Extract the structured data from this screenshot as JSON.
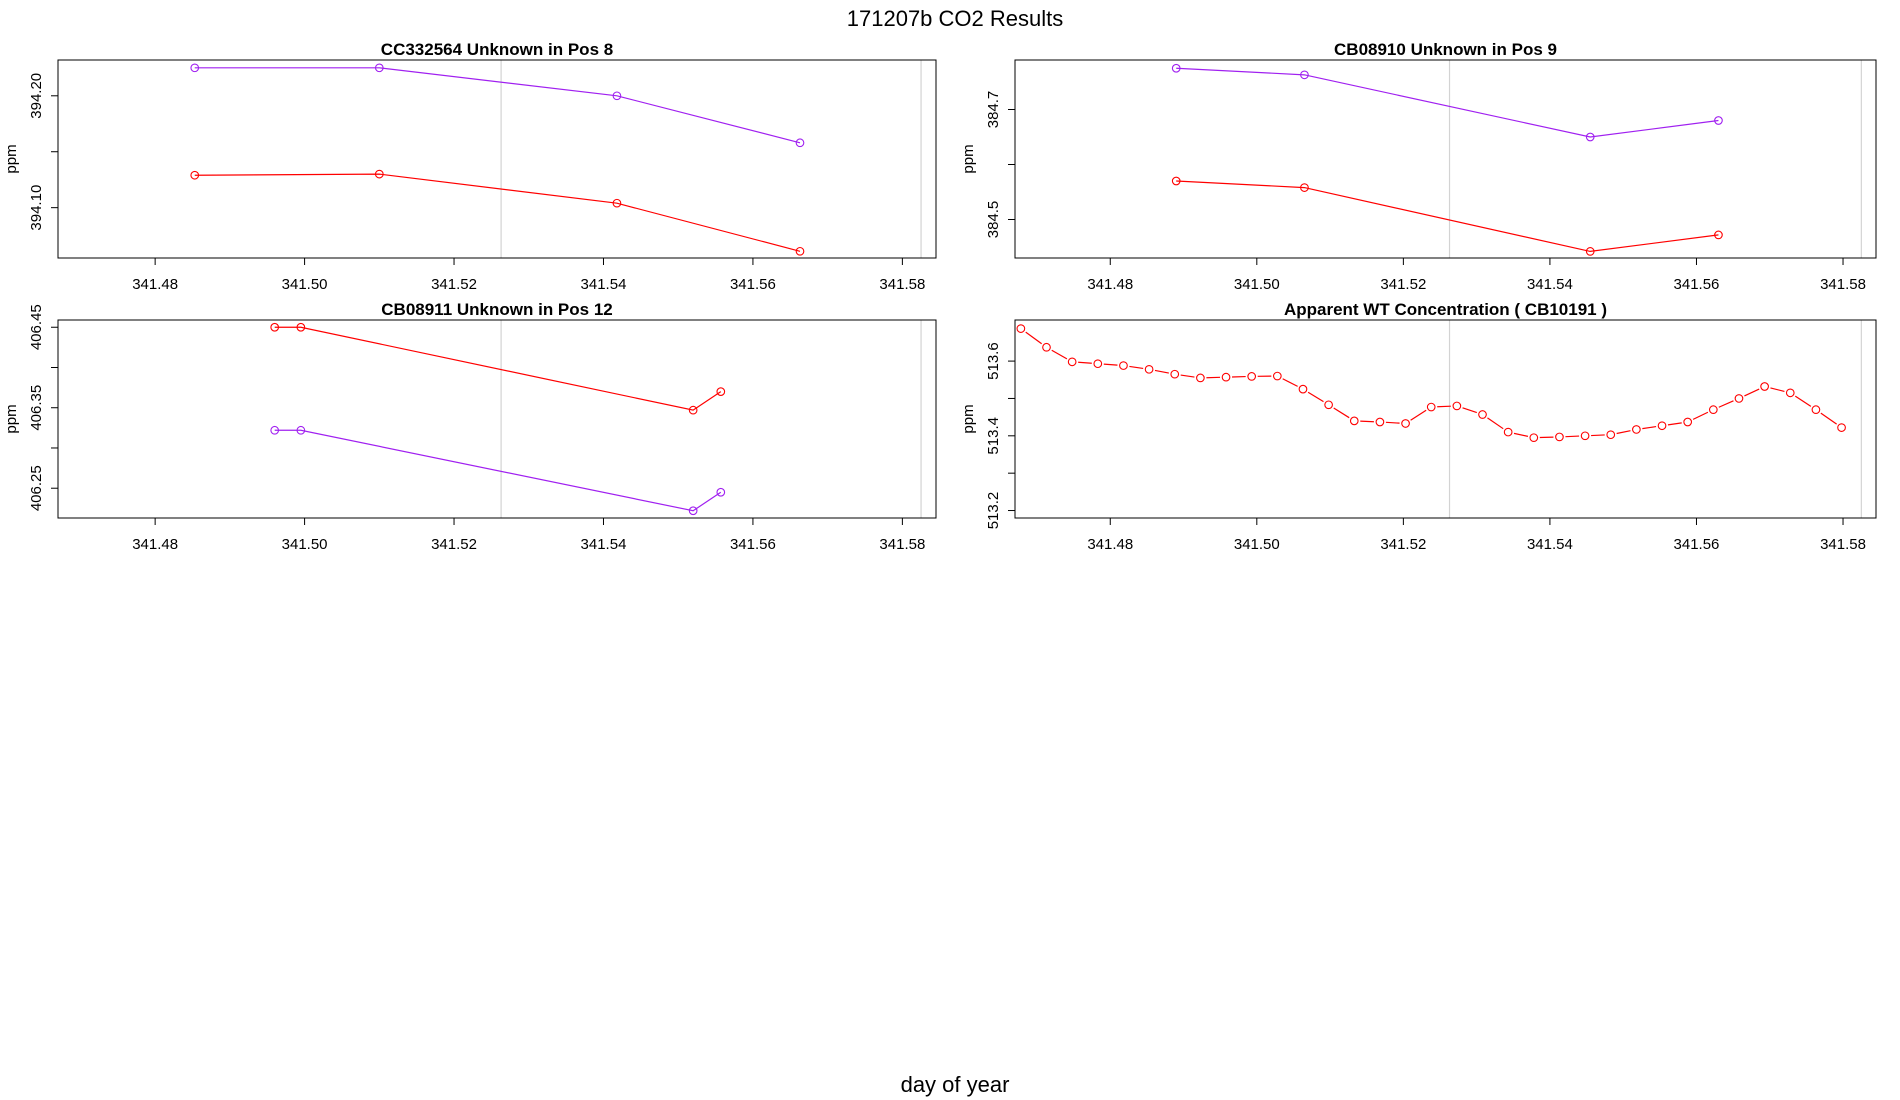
{
  "figure": {
    "title": "171207b  CO2 Results",
    "xlabel": "day of year"
  },
  "colors": {
    "red": "#ff0000",
    "purple": "#a020f0",
    "grid": "#d3d3d3",
    "axis": "#000000"
  },
  "chart_data": [
    {
      "type": "line",
      "title": "CC332564    Unknown in Pos 8",
      "ylabel": "ppm",
      "xlim": [
        341.467,
        341.5845
      ],
      "ylim": [
        394.055,
        394.232
      ],
      "xticks": [
        341.48,
        341.5,
        341.52,
        341.54,
        341.56,
        341.58
      ],
      "xtick_labels": [
        "341.48",
        "341.50",
        "341.52",
        "341.54",
        "341.56",
        "341.58"
      ],
      "yticks": [
        394.1,
        394.2
      ],
      "ytick_labels": [
        "394.10",
        "394.20"
      ],
      "yticks_minor": [
        394.15
      ],
      "vlines": [
        341.5263,
        341.5825
      ],
      "series": [
        {
          "name": "purple",
          "color": "purple",
          "dashed": false,
          "x": [
            341.4853,
            341.51,
            341.5418,
            341.5663
          ],
          "y": [
            394.225,
            394.225,
            394.2,
            394.158
          ]
        },
        {
          "name": "red",
          "color": "red",
          "dashed": false,
          "x": [
            341.4853,
            341.51,
            341.5418,
            341.5663
          ],
          "y": [
            394.129,
            394.13,
            394.104,
            394.061
          ]
        }
      ]
    },
    {
      "type": "line",
      "title": "CB08910    Unknown in Pos 9",
      "ylabel": "ppm",
      "xlim": [
        341.467,
        341.5845
      ],
      "ylim": [
        384.43,
        384.79
      ],
      "xticks": [
        341.48,
        341.5,
        341.52,
        341.54,
        341.56,
        341.58
      ],
      "xtick_labels": [
        "341.48",
        "341.50",
        "341.52",
        "341.54",
        "341.56",
        "341.58"
      ],
      "yticks": [
        384.5,
        384.7
      ],
      "ytick_labels": [
        "384.5",
        "384.7"
      ],
      "yticks_minor": [
        384.6
      ],
      "vlines": [
        341.5263,
        341.5825
      ],
      "series": [
        {
          "name": "purple",
          "color": "purple",
          "dashed": false,
          "x": [
            341.489,
            341.5065,
            341.5455,
            341.563
          ],
          "y": [
            384.775,
            384.763,
            384.65,
            384.68
          ]
        },
        {
          "name": "red",
          "color": "red",
          "dashed": false,
          "x": [
            341.489,
            341.5065,
            341.5455,
            341.563
          ],
          "y": [
            384.57,
            384.558,
            384.442,
            384.472
          ]
        }
      ]
    },
    {
      "type": "line",
      "title": "CB08911    Unknown in Pos 12",
      "ylabel": "ppm",
      "xlim": [
        341.467,
        341.5845
      ],
      "ylim": [
        406.213,
        406.459
      ],
      "xticks": [
        341.48,
        341.5,
        341.52,
        341.54,
        341.56,
        341.58
      ],
      "xtick_labels": [
        "341.48",
        "341.50",
        "341.52",
        "341.54",
        "341.56",
        "341.58"
      ],
      "yticks": [
        406.25,
        406.35,
        406.45
      ],
      "ytick_labels": [
        "406.25",
        "406.35",
        "406.45"
      ],
      "yticks_minor": [
        406.3,
        406.4
      ],
      "vlines": [
        341.5263,
        341.5825
      ],
      "series": [
        {
          "name": "red",
          "color": "red",
          "dashed": false,
          "x": [
            341.496,
            341.4995,
            341.552,
            341.5557
          ],
          "y": [
            406.45,
            406.45,
            406.347,
            406.37
          ]
        },
        {
          "name": "purple",
          "color": "purple",
          "dashed": false,
          "x": [
            341.496,
            341.4995,
            341.552,
            341.5557
          ],
          "y": [
            406.322,
            406.322,
            406.222,
            406.245
          ]
        }
      ]
    },
    {
      "type": "line",
      "title": "Apparent WT Concentration ( CB10191 )",
      "ylabel": "ppm",
      "xlim": [
        341.467,
        341.5845
      ],
      "ylim": [
        513.18,
        513.71
      ],
      "xticks": [
        341.48,
        341.5,
        341.52,
        341.54,
        341.56,
        341.58
      ],
      "xtick_labels": [
        "341.48",
        "341.50",
        "341.52",
        "341.54",
        "341.56",
        "341.58"
      ],
      "yticks": [
        513.2,
        513.4,
        513.6
      ],
      "ytick_labels": [
        "513.2",
        "513.4",
        "513.6"
      ],
      "yticks_minor": [
        513.3,
        513.5
      ],
      "vlines": [
        341.5263,
        341.5825
      ],
      "series": [
        {
          "name": "WT",
          "color": "red",
          "dashed": true,
          "x": [
            341.4678,
            341.4713,
            341.4748,
            341.4783,
            341.4818,
            341.4853,
            341.4888,
            341.4923,
            341.4958,
            341.4993,
            341.5028,
            341.5063,
            341.5098,
            341.5133,
            341.5168,
            341.5203,
            341.5238,
            341.5273,
            341.5308,
            341.5343,
            341.5378,
            341.5413,
            341.5448,
            341.5483,
            341.5518,
            341.5553,
            341.5588,
            341.5623,
            341.5658,
            341.5693,
            341.5728,
            341.5763,
            341.5798
          ],
          "y": [
            513.687,
            513.637,
            513.598,
            513.593,
            513.588,
            513.578,
            513.565,
            513.555,
            513.557,
            513.559,
            513.56,
            513.525,
            513.483,
            513.44,
            513.437,
            513.433,
            513.477,
            513.48,
            513.457,
            513.41,
            513.395,
            513.397,
            513.4,
            513.403,
            513.417,
            513.427,
            513.437,
            513.47,
            513.5,
            513.532,
            513.515,
            513.47,
            513.422
          ]
        }
      ]
    }
  ]
}
